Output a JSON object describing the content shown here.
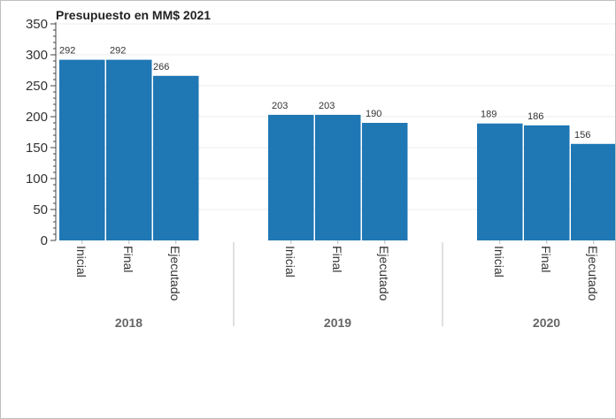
{
  "chart_data": {
    "type": "bar",
    "title": "Presupuesto en MM$ 2021",
    "xlabel": "",
    "ylabel": "",
    "ylim": [
      0,
      350
    ],
    "yticks": [
      "0",
      "50",
      "100",
      "150",
      "200",
      "250",
      "300",
      "350"
    ],
    "grid": "horizontal",
    "groups": [
      {
        "name": "2018",
        "categories": [
          "Inicial",
          "Final",
          "Ejecutado"
        ],
        "values": [
          292,
          292,
          266
        ],
        "labels": [
          "292",
          "292",
          "266"
        ]
      },
      {
        "name": "2019",
        "categories": [
          "Inicial",
          "Final",
          "Ejecutado"
        ],
        "values": [
          203,
          203,
          190
        ],
        "labels": [
          "203",
          "203",
          "190"
        ]
      },
      {
        "name": "2020",
        "categories": [
          "Inicial",
          "Final",
          "Ejecutado"
        ],
        "values": [
          189,
          186,
          156
        ],
        "labels": [
          "189",
          "186",
          "156"
        ]
      }
    ],
    "bar_color": "#1f77b4"
  }
}
